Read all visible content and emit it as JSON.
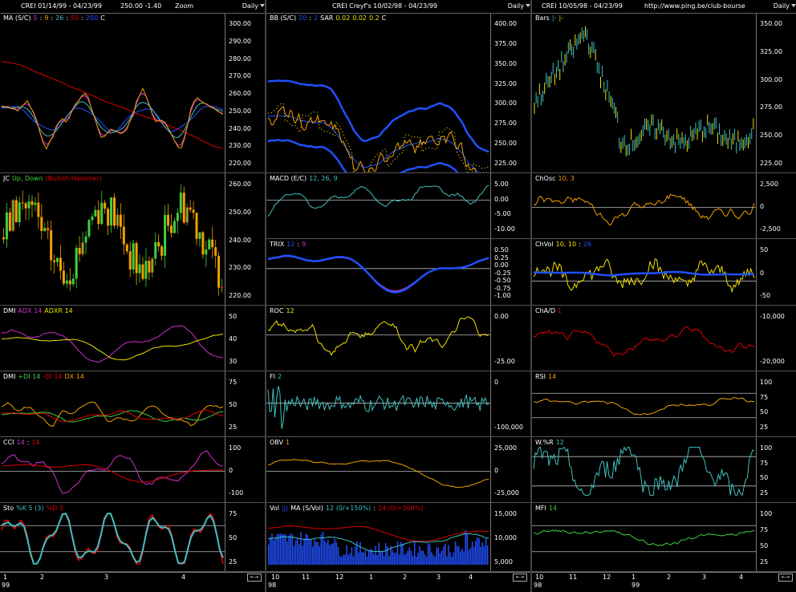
{
  "colors": {
    "yellow": "#f0e000",
    "orange": "#f0a000",
    "red": "#e00000",
    "blue": "#2050ff",
    "cyan": "#40c0c0",
    "magenta": "#d030d0",
    "green": "#40d040",
    "white": "#ffffff"
  },
  "columns": [
    {
      "title": [
        "CREI  01/14/99 - 04/23/99",
        "250.00  -1.40",
        "Zoom"
      ],
      "period": "Daily",
      "panels": [
        {
          "label": [
            {
              "t": "MA (S/C)",
              "c": "#fff"
            },
            {
              "t": "5",
              "c": "#d030d0"
            },
            {
              "t": ":",
              "c": "#fff"
            },
            {
              "t": "9",
              "c": "#f0a000"
            },
            {
              "t": ":",
              "c": "#fff"
            },
            {
              "t": "26",
              "c": "#40c0c0"
            },
            {
              "t": ":",
              "c": "#fff"
            },
            {
              "t": "50",
              "c": "#e00000"
            },
            {
              "t": ":",
              "c": "#fff"
            },
            {
              "t": "200",
              "c": "#2050ff"
            },
            {
              "t": "C",
              "c": "#fff"
            }
          ],
          "ticks": [
            "300.00",
            "290.00",
            "280.00",
            "270.00",
            "260.00",
            "250.00",
            "240.00",
            "230.00",
            "220.00"
          ]
        },
        {
          "label": [
            {
              "t": "JC",
              "c": "#fff"
            },
            {
              "t": "Up, Down",
              "c": "#40d040"
            },
            {
              "t": "(Bullish Hammer)",
              "c": "#e00000"
            }
          ],
          "ticks": [
            "260.00",
            "250.00",
            "240.00",
            "230.00",
            "220.00"
          ]
        },
        {
          "label": [
            {
              "t": "DMI",
              "c": "#fff"
            },
            {
              "t": "ADX 14",
              "c": "#d030d0"
            },
            {
              "t": "ADXR 14",
              "c": "#f0e000"
            }
          ],
          "ticks": [
            "50",
            "40",
            "30"
          ]
        },
        {
          "label": [
            {
              "t": "DMI",
              "c": "#fff"
            },
            {
              "t": "+DI 14",
              "c": "#40d040"
            },
            {
              "t": "-DI 14",
              "c": "#e00000"
            },
            {
              "t": "DX 14",
              "c": "#f0a000"
            }
          ],
          "ticks": [
            "75",
            "50",
            "25"
          ]
        },
        {
          "label": [
            {
              "t": "CCI",
              "c": "#fff"
            },
            {
              "t": "14",
              "c": "#d030d0"
            },
            {
              "t": ":",
              "c": "#fff"
            },
            {
              "t": "14",
              "c": "#e00000"
            }
          ],
          "ticks": [
            "100",
            "0",
            "-100"
          ]
        },
        {
          "label": [
            {
              "t": "Sto",
              "c": "#fff"
            },
            {
              "t": "%K 5 (3)",
              "c": "#40c0c0"
            },
            {
              "t": "%D 3",
              "c": "#e00000"
            }
          ],
          "ticks": [
            "75",
            "50",
            "25"
          ]
        }
      ],
      "x_labels": [
        "1",
        "2",
        "3",
        "4"
      ],
      "year": "99"
    },
    {
      "title": [
        "CREI  Creyf's  10/02/98 - 04/23/99"
      ],
      "period": "Daily",
      "panels": [
        {
          "label": [
            {
              "t": "BB (S/C)",
              "c": "#fff"
            },
            {
              "t": "20",
              "c": "#2050ff"
            },
            {
              "t": ":",
              "c": "#fff"
            },
            {
              "t": "2",
              "c": "#2050ff"
            },
            {
              "t": "SAR",
              "c": "#fff"
            },
            {
              "t": "0.02",
              "c": "#f0e000"
            },
            {
              "t": "0.02",
              "c": "#f0e000"
            },
            {
              "t": "0.2",
              "c": "#f0e000"
            },
            {
              "t": "C",
              "c": "#fff"
            }
          ],
          "ticks": [
            "400.00",
            "375.00",
            "350.00",
            "325.00",
            "300.00",
            "275.00",
            "250.00",
            "225.00"
          ]
        },
        {
          "label": [
            {
              "t": "MACD (E/C)",
              "c": "#fff"
            },
            {
              "t": "12, 26, 9",
              "c": "#40c0c0"
            }
          ],
          "ticks": [
            "5.00",
            "0.00",
            "-5.00",
            "-10.00"
          ]
        },
        {
          "label": [
            {
              "t": "TRIX",
              "c": "#fff"
            },
            {
              "t": "12",
              "c": "#2050ff"
            },
            {
              "t": ":",
              "c": "#fff"
            },
            {
              "t": "9",
              "c": "#d030d0"
            }
          ],
          "ticks": [
            "0.50",
            "0.25",
            "0.00",
            "-0.25",
            "-0.50",
            "-0.75",
            "-1.00"
          ]
        },
        {
          "label": [
            {
              "t": "ROC",
              "c": "#fff"
            },
            {
              "t": "12",
              "c": "#f0e000"
            }
          ],
          "ticks": [
            "0.00",
            "-25.00"
          ]
        },
        {
          "label": [
            {
              "t": "FI",
              "c": "#fff"
            },
            {
              "t": "2",
              "c": "#40c0c0"
            }
          ],
          "ticks": [
            "0",
            "-100,000"
          ]
        },
        {
          "label": [
            {
              "t": "OBV",
              "c": "#fff"
            },
            {
              "t": "1",
              "c": "#f0a000"
            }
          ],
          "ticks": [
            "25,000",
            "0",
            "-25,000"
          ]
        },
        {
          "label": [
            {
              "t": "Vol",
              "c": "#fff"
            },
            {
              "t": "|||",
              "c": "#2050ff"
            },
            {
              "t": "MA (S/Vol)",
              "c": "#fff"
            },
            {
              "t": "12 (0/+150%)",
              "c": "#40c0c0"
            },
            {
              "t": ":",
              "c": "#fff"
            },
            {
              "t": "24 (0/+300%)",
              "c": "#e00000"
            }
          ],
          "ticks": [
            "15,000",
            "10,000",
            "5,000"
          ]
        }
      ],
      "x_labels": [
        "10",
        "11",
        "12",
        "1",
        "2",
        "3",
        "4"
      ],
      "year": "98"
    },
    {
      "title": [
        "CREI  10/05/98 - 04/23/99",
        "http://www.ping.be/club-bourse"
      ],
      "period": "Daily",
      "panels": [
        {
          "label": [
            {
              "t": "Bars",
              "c": "#fff"
            },
            {
              "t": "|-",
              "c": "#40c0c0"
            },
            {
              "t": "|-",
              "c": "#f0e000"
            }
          ],
          "ticks": [
            "350.00",
            "325.00",
            "300.00",
            "275.00",
            "250.00",
            "225.00"
          ]
        },
        {
          "label": [
            {
              "t": "ChOsc",
              "c": "#fff"
            },
            {
              "t": "10, 3",
              "c": "#f0a000"
            }
          ],
          "ticks": [
            "2,500",
            "0",
            "-2,500"
          ]
        },
        {
          "label": [
            {
              "t": "ChVol",
              "c": "#fff"
            },
            {
              "t": "10, 10",
              "c": "#f0e000"
            },
            {
              "t": ":",
              "c": "#fff"
            },
            {
              "t": "26",
              "c": "#2050ff"
            }
          ],
          "ticks": [
            "50",
            "0",
            "-50"
          ]
        },
        {
          "label": [
            {
              "t": "ChA/D",
              "c": "#fff"
            },
            {
              "t": "1",
              "c": "#e00000"
            }
          ],
          "ticks": [
            "-10,000",
            "-20,000"
          ]
        },
        {
          "label": [
            {
              "t": "RSI",
              "c": "#fff"
            },
            {
              "t": "14",
              "c": "#f0a000"
            }
          ],
          "ticks": [
            "100",
            "75",
            "50",
            "25"
          ]
        },
        {
          "label": [
            {
              "t": "W.%R",
              "c": "#fff"
            },
            {
              "t": "12",
              "c": "#40c0c0"
            }
          ],
          "ticks": [
            "100",
            "75",
            "50",
            "25"
          ]
        },
        {
          "label": [
            {
              "t": "MFI",
              "c": "#fff"
            },
            {
              "t": "14",
              "c": "#40d040"
            }
          ],
          "ticks": [
            "100",
            "75",
            "50",
            "25"
          ]
        }
      ],
      "x_labels": [
        "10",
        "11",
        "12",
        "1",
        "2",
        "3",
        "4"
      ],
      "year": "98",
      "year2": "99"
    }
  ],
  "scroll_glyph": "⇤⇥"
}
